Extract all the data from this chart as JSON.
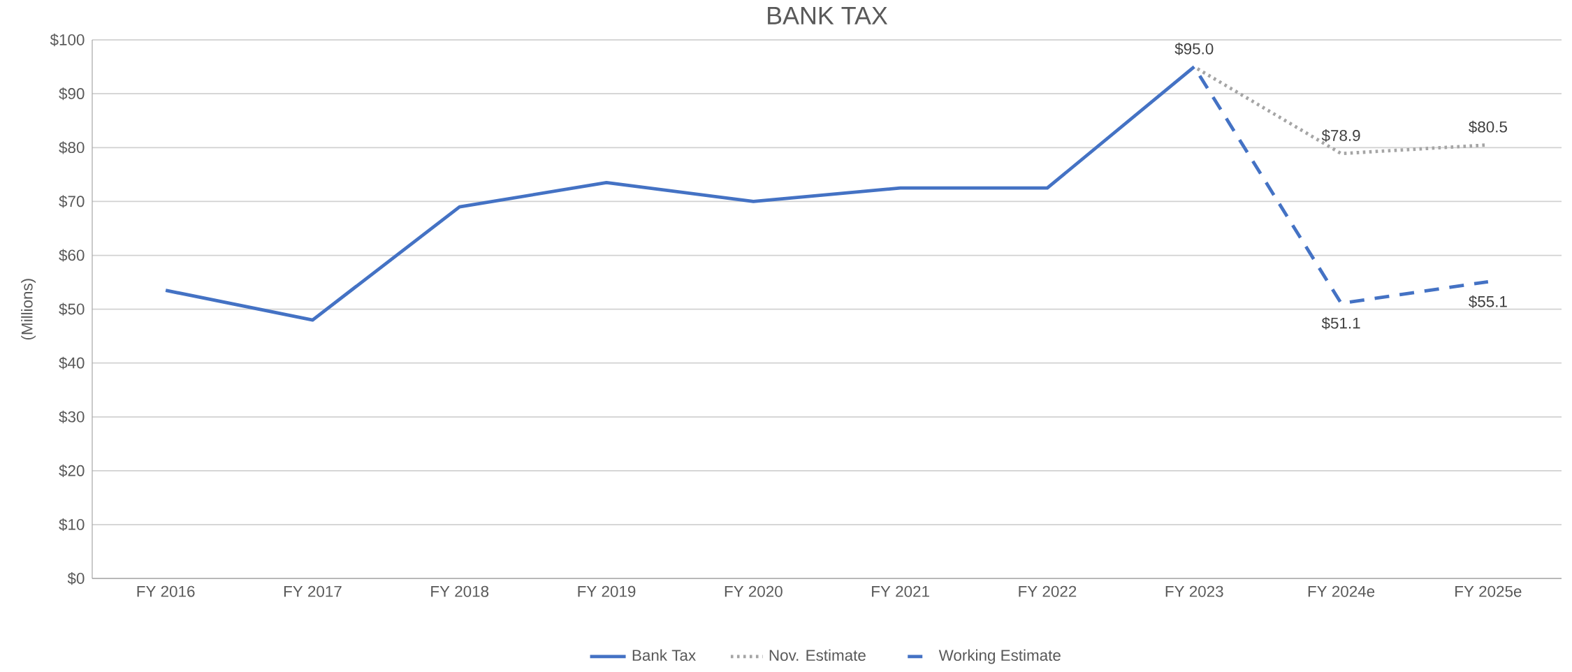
{
  "chart_data": {
    "type": "line",
    "title": "BANK TAX",
    "ylabel": "(Millions)",
    "categories": [
      "FY 2016",
      "FY 2017",
      "FY 2018",
      "FY 2019",
      "FY 2020",
      "FY 2021",
      "FY 2022",
      "FY 2023",
      "FY 2024e",
      "FY 2025e"
    ],
    "series": [
      {
        "name": "Bank Tax",
        "color": "#4472c4",
        "line_style": "solid",
        "values": [
          53.5,
          48.0,
          69.0,
          73.5,
          70.0,
          72.5,
          72.5,
          95.0,
          null,
          null
        ],
        "value_labels": [
          null,
          null,
          null,
          null,
          null,
          null,
          null,
          "$95.0",
          null,
          null
        ]
      },
      {
        "name": "Nov. Estimate",
        "color": "#a5a5a5",
        "line_style": "dotted",
        "values": [
          null,
          null,
          null,
          null,
          null,
          null,
          null,
          95.0,
          78.9,
          80.5
        ],
        "value_labels": [
          null,
          null,
          null,
          null,
          null,
          null,
          null,
          null,
          "$78.9",
          "$80.5"
        ]
      },
      {
        "name": "Working Estimate",
        "color": "#4472c4",
        "line_style": "dashed",
        "values": [
          null,
          null,
          null,
          null,
          null,
          null,
          null,
          95.0,
          51.1,
          55.1
        ],
        "value_labels": [
          null,
          null,
          null,
          null,
          null,
          null,
          null,
          null,
          "$51.1",
          "$55.1"
        ]
      }
    ],
    "ylim": [
      0,
      100
    ],
    "yticks": [
      {
        "value": 0,
        "label": "$0"
      },
      {
        "value": 10,
        "label": "$10"
      },
      {
        "value": 20,
        "label": "$20"
      },
      {
        "value": 30,
        "label": "$30"
      },
      {
        "value": 40,
        "label": "$40"
      },
      {
        "value": 50,
        "label": "$50"
      },
      {
        "value": 60,
        "label": "$60"
      },
      {
        "value": 70,
        "label": "$70"
      },
      {
        "value": 80,
        "label": "$80"
      },
      {
        "value": 90,
        "label": "$90"
      },
      {
        "value": 100,
        "label": "$100"
      }
    ],
    "grid": "y",
    "legend": "bottom",
    "marker": "none"
  }
}
